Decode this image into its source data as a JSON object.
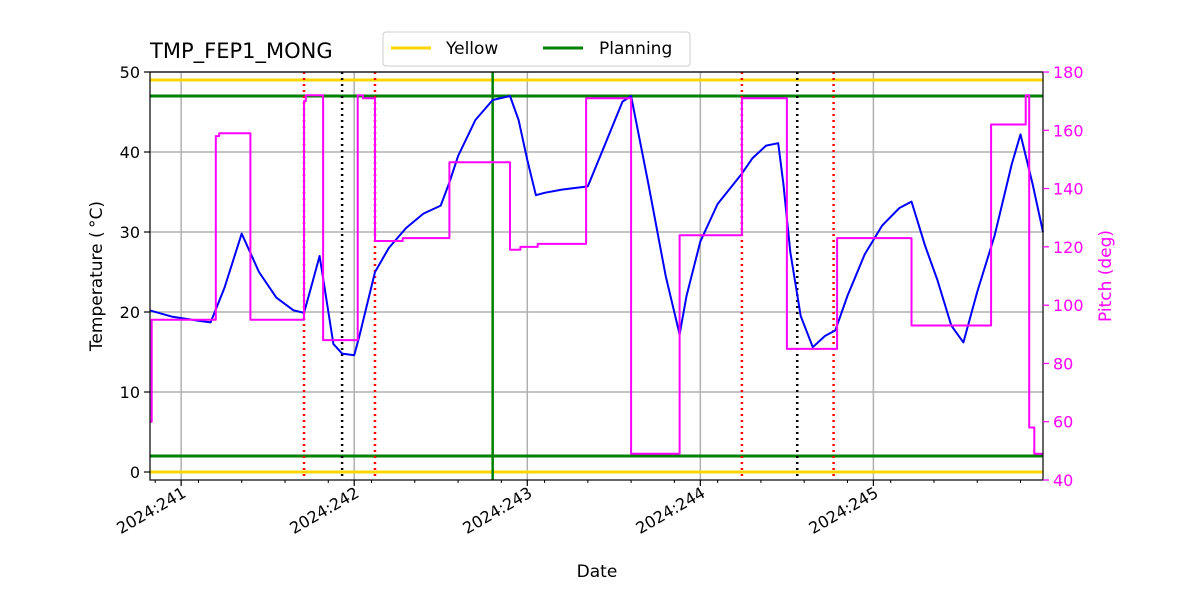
{
  "chart_data": {
    "type": "line",
    "title": "TMP_FEP1_MONG",
    "xlabel": "Date",
    "ylabel": "Temperature ($^\\circ$C)",
    "ylabel_display": "Temperature ( °C)",
    "y2label": "Pitch (deg)",
    "xlim": [
      240.82,
      245.98
    ],
    "ylim": [
      -1,
      50
    ],
    "y2lim": [
      40,
      180
    ],
    "x_ticks": [
      241,
      242,
      243,
      244,
      245
    ],
    "x_tick_labels": [
      "2024:241",
      "2024:242",
      "2024:243",
      "2024:244",
      "2024:245"
    ],
    "y_ticks": [
      0,
      10,
      20,
      30,
      40,
      50
    ],
    "y_tick_labels": [
      "0",
      "10",
      "20",
      "30",
      "40",
      "50"
    ],
    "y2_ticks": [
      40,
      60,
      80,
      100,
      120,
      140,
      160,
      180
    ],
    "y2_tick_labels": [
      "40",
      "60",
      "80",
      "100",
      "120",
      "140",
      "160",
      "180"
    ],
    "grid": true,
    "legend": {
      "placement": "top",
      "entries": [
        {
          "name": "Yellow",
          "color": "#FFD700"
        },
        {
          "name": "Planning",
          "color": "#008000"
        }
      ]
    },
    "colors": {
      "temperature": "#0000FF",
      "pitch": "#FF00FF",
      "yellow": "#FFD700",
      "planning": "#008000",
      "red_marker": "#FF0000",
      "black_marker": "#000000",
      "grid": "#B0B0B0"
    },
    "limits": {
      "yellow_hi": 49,
      "yellow_lo": 0,
      "planning_hi": 47,
      "planning_lo": 2
    },
    "planning_vline_x": 242.8,
    "red_dotted_vlines_x": [
      241.71,
      242.12,
      244.24,
      244.77
    ],
    "black_dotted_vlines_x": [
      241.93,
      244.56
    ],
    "series": [
      {
        "name": "temperature",
        "axis": "left",
        "x": [
          240.82,
          240.95,
          241.1,
          241.17,
          241.25,
          241.35,
          241.45,
          241.55,
          241.65,
          241.71,
          241.75,
          241.8,
          241.84,
          241.88,
          241.93,
          242.0,
          242.03,
          242.12,
          242.2,
          242.3,
          242.4,
          242.5,
          242.55,
          242.6,
          242.7,
          242.8,
          242.9,
          242.95,
          243.0,
          243.05,
          243.1,
          243.2,
          243.35,
          243.45,
          243.55,
          243.6,
          243.7,
          243.8,
          243.88,
          243.92,
          244.0,
          244.1,
          244.24,
          244.3,
          244.38,
          244.45,
          244.48,
          244.52,
          244.58,
          244.65,
          244.72,
          244.78,
          244.85,
          244.95,
          245.05,
          245.15,
          245.22,
          245.3,
          245.37,
          245.45,
          245.52,
          245.6,
          245.7,
          245.8,
          245.85,
          245.92,
          245.98
        ],
        "y": [
          20.2,
          19.4,
          18.9,
          18.7,
          23.0,
          29.8,
          25.0,
          21.8,
          20.2,
          19.9,
          23.0,
          27.0,
          21.5,
          16.0,
          14.8,
          14.6,
          17.0,
          25.0,
          28.0,
          30.5,
          32.3,
          33.3,
          36.2,
          39.5,
          44.0,
          46.5,
          47.0,
          44.0,
          39.0,
          34.6,
          34.9,
          35.3,
          35.7,
          41.0,
          46.3,
          47.0,
          36.0,
          24.5,
          17.2,
          22.0,
          28.8,
          33.5,
          37.3,
          39.2,
          40.8,
          41.1,
          36.0,
          27.5,
          19.5,
          15.6,
          17.0,
          17.7,
          22.0,
          27.2,
          30.8,
          33.0,
          33.8,
          28.2,
          24.0,
          18.3,
          16.2,
          22.5,
          29.5,
          38.5,
          42.2,
          36.0,
          30.0
        ]
      },
      {
        "name": "pitch",
        "axis": "right",
        "x": [
          240.82,
          240.83,
          240.83,
          241.2,
          241.2,
          241.22,
          241.22,
          241.4,
          241.4,
          241.5,
          241.5,
          241.71,
          241.71,
          241.72,
          241.72,
          241.8,
          241.8,
          241.82,
          241.82,
          241.93,
          241.93,
          242.02,
          242.02,
          242.05,
          242.05,
          242.12,
          242.12,
          242.28,
          242.28,
          242.55,
          242.55,
          242.9,
          242.9,
          242.96,
          242.96,
          243.06,
          243.06,
          243.18,
          243.18,
          243.34,
          243.34,
          243.58,
          243.58,
          243.6,
          243.6,
          243.86,
          243.86,
          243.88,
          243.88,
          244.24,
          244.24,
          244.45,
          244.45,
          244.47,
          244.47,
          244.5,
          244.5,
          244.77,
          244.77,
          244.79,
          244.79,
          245.2,
          245.2,
          245.22,
          245.22,
          245.45,
          245.45,
          245.68,
          245.68,
          245.88,
          245.88,
          245.9,
          245.9,
          245.93,
          245.93,
          245.98
        ],
        "y": [
          60,
          60,
          95,
          95,
          158,
          158,
          159,
          159,
          95,
          95,
          95,
          95,
          170,
          170,
          172,
          172,
          172,
          172,
          88,
          88,
          88,
          88,
          172,
          172,
          171,
          171,
          122,
          122,
          123,
          123,
          149,
          149,
          119,
          119,
          120,
          120,
          121,
          121,
          121,
          121,
          171,
          171,
          171,
          171,
          49,
          49,
          49,
          49,
          124,
          124,
          171,
          171,
          171,
          171,
          171,
          171,
          85,
          85,
          85,
          85,
          123,
          123,
          123,
          123,
          93,
          93,
          93,
          93,
          162,
          162,
          172,
          172,
          58,
          58,
          49,
          49
        ]
      }
    ]
  }
}
